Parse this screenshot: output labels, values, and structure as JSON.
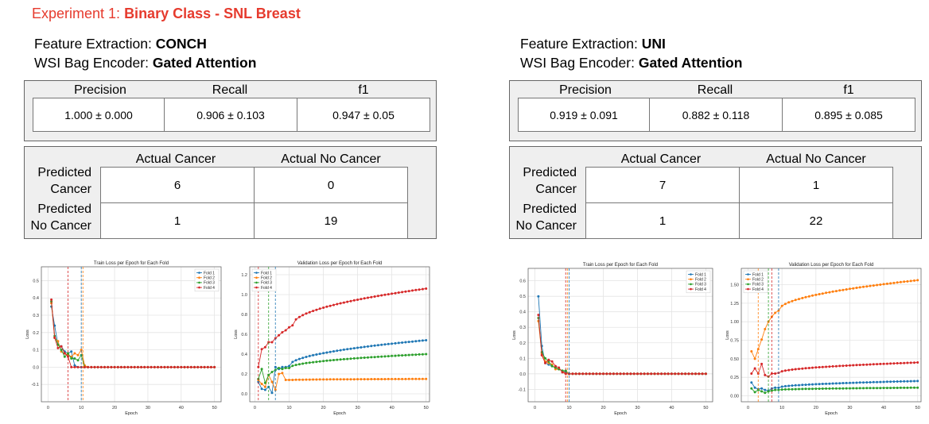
{
  "experiment": {
    "prefix": "Experiment 1: ",
    "name": "Binary Class - SNL Breast"
  },
  "labels": {
    "feature_extraction": "Feature Extraction: ",
    "bag_encoder": "WSI Bag Encoder: ",
    "precision": "Precision",
    "recall": "Recall",
    "f1": "f1",
    "actual_cancer": "Actual Cancer",
    "actual_no_cancer": "Actual No Cancer",
    "predicted": "Predicted",
    "cancer": "Cancer",
    "no_cancer": "No Cancer"
  },
  "left": {
    "feature_extractor": "CONCH",
    "bag_encoder": "Gated Attention",
    "precision": "1.000 ± 0.000",
    "recall": "0.906 ± 0.103",
    "f1": "0.947 ± 0.05",
    "cm": {
      "tp": "6",
      "fp": "0",
      "fn": "1",
      "tn": "19"
    }
  },
  "right": {
    "feature_extractor": "UNI",
    "bag_encoder": "Gated Attention",
    "precision": "0.919 ± 0.091",
    "recall": "0.882 ± 0.118",
    "f1": "0.895 ± 0.085",
    "cm": {
      "tp": "7",
      "fp": "1",
      "fn": "1",
      "tn": "22"
    }
  },
  "chart_data": [
    {
      "type": "line",
      "title": "Train Loss per Epoch for Each Fold",
      "xlabel": "Epoch",
      "ylabel": "Loss",
      "xlim": [
        -2,
        52
      ],
      "ylim": [
        -0.2,
        0.58
      ],
      "xticks": [
        0,
        10,
        20,
        30,
        40,
        50
      ],
      "yticks": [
        -0.1,
        0.0,
        0.1,
        0.2,
        0.3,
        0.4,
        0.5
      ],
      "grid": true,
      "legend": "top-right",
      "vlines": [
        6,
        10,
        10.5
      ],
      "series": [
        {
          "name": "Fold 1",
          "color": "#1f77b4",
          "values": [
            0.35,
            0.24,
            0.13,
            0.12,
            0.09,
            0.08,
            0.09,
            0.01,
            0.0,
            0.0
          ]
        },
        {
          "name": "Fold 2",
          "color": "#ff7f0e",
          "values": [
            0.37,
            0.17,
            0.15,
            0.09,
            0.08,
            0.07,
            0.06,
            0.08,
            0.07,
            0.1,
            0.01
          ]
        },
        {
          "name": "Fold 3",
          "color": "#2ca02c",
          "values": [
            0.38,
            0.18,
            0.13,
            0.1,
            0.06,
            0.08,
            0.05,
            0.05,
            0.04,
            0.07,
            0.0
          ]
        },
        {
          "name": "Fold 4",
          "color": "#d62728",
          "values": [
            0.39,
            0.17,
            0.11,
            0.12,
            0.08,
            0.06
          ]
        }
      ]
    },
    {
      "type": "line",
      "title": "Validation Loss per Epoch for Each Fold",
      "xlabel": "Epoch",
      "ylabel": "Loss",
      "xlim": [
        -1.5,
        51
      ],
      "ylim": [
        -0.08,
        1.28
      ],
      "xticks": [
        0,
        10,
        20,
        30,
        40,
        50
      ],
      "yticks": [
        0.0,
        0.2,
        0.4,
        0.6,
        0.8,
        1.0,
        1.2
      ],
      "grid": true,
      "legend": "top-left",
      "vlines": [
        1,
        4,
        6
      ],
      "series": [
        {
          "name": "Fold 1",
          "color": "#1f77b4",
          "values": [
            0.12,
            0.05,
            0.04,
            0.07,
            0.01,
            0.27,
            0.25,
            0.27,
            0.27,
            0.28
          ],
          "end": 0.54
        },
        {
          "name": "Fold 2",
          "color": "#ff7f0e",
          "values": [
            0.14,
            0.1,
            0.07,
            0.19,
            0.12,
            0.04,
            0.2,
            0.21,
            0.14,
            0.14,
            0.14
          ],
          "end": 0.15
        },
        {
          "name": "Fold 3",
          "color": "#2ca02c",
          "values": [
            0.15,
            0.25,
            0.11,
            0.19,
            0.22,
            0.24,
            0.26,
            0.25,
            0.26,
            0.26
          ],
          "end": 0.4
        },
        {
          "name": "Fold 4",
          "color": "#d62728",
          "values": [
            0.27,
            0.45,
            0.47,
            0.52,
            0.52,
            0.56,
            0.59,
            0.62,
            0.64,
            0.67,
            0.69
          ],
          "end": 1.06
        }
      ]
    },
    {
      "type": "line",
      "title": "Train Loss per Epoch for Each Fold",
      "xlabel": "Epoch",
      "ylabel": "Loss",
      "xlim": [
        -2,
        52
      ],
      "ylim": [
        -0.18,
        0.68
      ],
      "xticks": [
        0,
        10,
        20,
        30,
        40,
        50
      ],
      "yticks": [
        -0.1,
        0.0,
        0.1,
        0.2,
        0.3,
        0.4,
        0.5,
        0.6
      ],
      "grid": true,
      "legend": "top-right",
      "vlines": [
        9,
        9.5,
        10
      ],
      "series": [
        {
          "name": "Fold 1",
          "color": "#1f77b4",
          "values": [
            0.5,
            0.18,
            0.07,
            0.06,
            0.05,
            0.04,
            0.03,
            0.02,
            0.01,
            0.0
          ]
        },
        {
          "name": "Fold 2",
          "color": "#ff7f0e",
          "values": [
            0.34,
            0.13,
            0.08,
            0.07,
            0.06,
            0.03,
            0.03,
            0.02,
            0.0
          ]
        },
        {
          "name": "Fold 3",
          "color": "#2ca02c",
          "values": [
            0.36,
            0.14,
            0.1,
            0.08,
            0.05,
            0.04,
            0.03,
            0.02,
            0.02,
            0.0
          ]
        },
        {
          "name": "Fold 4",
          "color": "#d62728",
          "values": [
            0.38,
            0.12,
            0.07,
            0.09,
            0.08,
            0.05,
            0.04,
            0.01,
            0.0
          ]
        }
      ]
    },
    {
      "type": "line",
      "title": "Validation Loss per Epoch for Each Fold",
      "xlabel": "Epoch",
      "ylabel": "Loss",
      "xlim": [
        -2,
        51
      ],
      "ylim": [
        -0.08,
        1.72
      ],
      "xticks": [
        0,
        10,
        20,
        30,
        40,
        50
      ],
      "yticks": [
        0.0,
        0.25,
        0.5,
        0.75,
        1.0,
        1.25,
        1.5
      ],
      "grid": true,
      "legend": "top-left",
      "vlines": [
        3,
        6,
        7,
        9
      ],
      "series": [
        {
          "name": "Fold 1",
          "color": "#1f77b4",
          "values": [
            0.18,
            0.11,
            0.09,
            0.1,
            0.08,
            0.07,
            0.1,
            0.11,
            0.11
          ],
          "end": 0.2
        },
        {
          "name": "Fold 2",
          "color": "#ff7f0e",
          "values": [
            0.6,
            0.5,
            0.63,
            0.76,
            0.9,
            1.0,
            1.07,
            1.12,
            1.15
          ],
          "end": 1.56
        },
        {
          "name": "Fold 3",
          "color": "#2ca02c",
          "values": [
            0.1,
            0.05,
            0.08,
            0.06,
            0.04,
            0.06,
            0.07,
            0.08,
            0.08
          ],
          "end": 0.11
        },
        {
          "name": "Fold 4",
          "color": "#d62728",
          "values": [
            0.3,
            0.37,
            0.3,
            0.43,
            0.28,
            0.26,
            0.3,
            0.3,
            0.31
          ],
          "end": 0.45
        }
      ]
    }
  ]
}
